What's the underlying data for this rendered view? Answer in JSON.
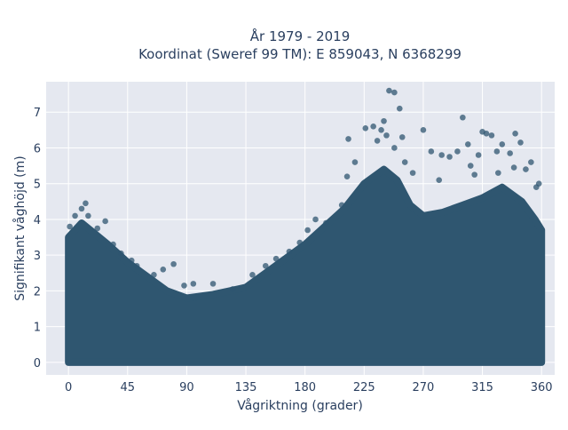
{
  "chart_data": {
    "type": "scatter",
    "title_line1": "År 1979 - 2019",
    "title_line2": "Koordinat (Sweref 99 TM): E 859043, N 6368299",
    "xlabel": "Vågriktning (grader)",
    "ylabel": "Signifikant våghöjd (m)",
    "xlim": [
      -17,
      370
    ],
    "ylim": [
      -0.35,
      7.85
    ],
    "xticks": [
      0,
      45,
      90,
      135,
      180,
      225,
      270,
      315,
      360
    ],
    "yticks": [
      0,
      1,
      2,
      3,
      4,
      5,
      6,
      7
    ],
    "grid": true,
    "marker_color": "#2f5670",
    "plot_background": "#e5e8f0",
    "dense_region_note": "points fill 0 m up to the envelope at every direction 0–360°",
    "envelope": [
      {
        "x": 0,
        "y": 3.5
      },
      {
        "x": 10,
        "y": 3.9
      },
      {
        "x": 20,
        "y": 3.6
      },
      {
        "x": 30,
        "y": 3.3
      },
      {
        "x": 45,
        "y": 2.8
      },
      {
        "x": 60,
        "y": 2.4
      },
      {
        "x": 75,
        "y": 2.0
      },
      {
        "x": 90,
        "y": 1.8
      },
      {
        "x": 110,
        "y": 1.9
      },
      {
        "x": 135,
        "y": 2.1
      },
      {
        "x": 150,
        "y": 2.5
      },
      {
        "x": 165,
        "y": 2.9
      },
      {
        "x": 180,
        "y": 3.3
      },
      {
        "x": 195,
        "y": 3.8
      },
      {
        "x": 210,
        "y": 4.3
      },
      {
        "x": 225,
        "y": 5.0
      },
      {
        "x": 240,
        "y": 5.4
      },
      {
        "x": 250,
        "y": 5.1
      },
      {
        "x": 260,
        "y": 4.4
      },
      {
        "x": 270,
        "y": 4.1
      },
      {
        "x": 285,
        "y": 4.2
      },
      {
        "x": 300,
        "y": 4.4
      },
      {
        "x": 315,
        "y": 4.6
      },
      {
        "x": 330,
        "y": 4.9
      },
      {
        "x": 345,
        "y": 4.5
      },
      {
        "x": 355,
        "y": 4.0
      },
      {
        "x": 360,
        "y": 3.7
      }
    ],
    "outliers": [
      {
        "x": 1,
        "y": 3.8
      },
      {
        "x": 5,
        "y": 4.1
      },
      {
        "x": 10,
        "y": 4.3
      },
      {
        "x": 13,
        "y": 4.45
      },
      {
        "x": 15,
        "y": 4.1
      },
      {
        "x": 22,
        "y": 3.75
      },
      {
        "x": 28,
        "y": 3.95
      },
      {
        "x": 34,
        "y": 3.3
      },
      {
        "x": 40,
        "y": 3.05
      },
      {
        "x": 48,
        "y": 2.85
      },
      {
        "x": 52,
        "y": 2.7
      },
      {
        "x": 65,
        "y": 2.45
      },
      {
        "x": 72,
        "y": 2.6
      },
      {
        "x": 80,
        "y": 2.75
      },
      {
        "x": 88,
        "y": 2.15
      },
      {
        "x": 95,
        "y": 2.2
      },
      {
        "x": 110,
        "y": 2.2
      },
      {
        "x": 125,
        "y": 2.05
      },
      {
        "x": 140,
        "y": 2.45
      },
      {
        "x": 150,
        "y": 2.7
      },
      {
        "x": 158,
        "y": 2.9
      },
      {
        "x": 168,
        "y": 3.1
      },
      {
        "x": 176,
        "y": 3.35
      },
      {
        "x": 182,
        "y": 3.7
      },
      {
        "x": 188,
        "y": 4.0
      },
      {
        "x": 196,
        "y": 3.9
      },
      {
        "x": 208,
        "y": 4.4
      },
      {
        "x": 213,
        "y": 6.25
      },
      {
        "x": 212,
        "y": 5.2
      },
      {
        "x": 218,
        "y": 5.6
      },
      {
        "x": 226,
        "y": 6.55
      },
      {
        "x": 232,
        "y": 6.6
      },
      {
        "x": 235,
        "y": 6.2
      },
      {
        "x": 238,
        "y": 6.5
      },
      {
        "x": 240,
        "y": 6.75
      },
      {
        "x": 242,
        "y": 6.35
      },
      {
        "x": 244,
        "y": 7.6
      },
      {
        "x": 248,
        "y": 7.55
      },
      {
        "x": 252,
        "y": 7.1
      },
      {
        "x": 248,
        "y": 6.0
      },
      {
        "x": 254,
        "y": 6.3
      },
      {
        "x": 256,
        "y": 5.6
      },
      {
        "x": 262,
        "y": 5.3
      },
      {
        "x": 270,
        "y": 6.5
      },
      {
        "x": 276,
        "y": 5.9
      },
      {
        "x": 284,
        "y": 5.8
      },
      {
        "x": 290,
        "y": 5.75
      },
      {
        "x": 296,
        "y": 5.9
      },
      {
        "x": 300,
        "y": 6.85
      },
      {
        "x": 304,
        "y": 6.1
      },
      {
        "x": 306,
        "y": 5.5
      },
      {
        "x": 312,
        "y": 5.8
      },
      {
        "x": 315,
        "y": 6.45
      },
      {
        "x": 318,
        "y": 6.4
      },
      {
        "x": 322,
        "y": 6.35
      },
      {
        "x": 326,
        "y": 5.9
      },
      {
        "x": 330,
        "y": 6.1
      },
      {
        "x": 336,
        "y": 5.85
      },
      {
        "x": 340,
        "y": 6.4
      },
      {
        "x": 344,
        "y": 6.15
      },
      {
        "x": 348,
        "y": 5.4
      },
      {
        "x": 352,
        "y": 5.6
      },
      {
        "x": 356,
        "y": 4.9
      },
      {
        "x": 358,
        "y": 5.0
      },
      {
        "x": 339,
        "y": 5.45
      },
      {
        "x": 327,
        "y": 5.3
      },
      {
        "x": 309,
        "y": 5.25
      },
      {
        "x": 282,
        "y": 5.1
      }
    ]
  }
}
